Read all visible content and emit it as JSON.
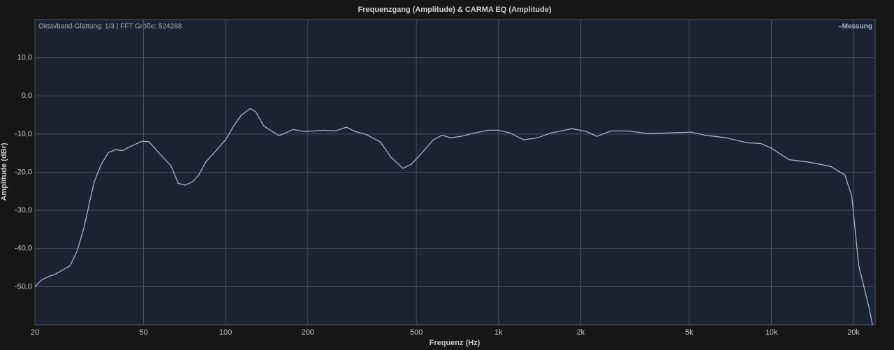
{
  "chart_data": {
    "type": "line",
    "title": "Frequenzgang (Amplitude) & CARMA EQ (Amplitude)",
    "annotation": "Oktavband-Glättung: 1/3 | FFT Größe: 524288",
    "x_label": "Frequenz (Hz)",
    "y_label": "Amplitude (dBr)",
    "log_x": true,
    "grid": true,
    "legend": "top-right",
    "xlim": [
      20,
      24000
    ],
    "ylim": [
      -60,
      20
    ],
    "xticks": [
      20,
      50,
      100,
      200,
      500,
      {
        "value": 1000,
        "label": "1k"
      },
      {
        "value": 2000,
        "label": "2k"
      },
      {
        "value": 5000,
        "label": "5k"
      },
      {
        "value": 10000,
        "label": "10k"
      },
      {
        "value": 20000,
        "label": "20k"
      }
    ],
    "yticks": [
      {
        "value": -50,
        "label": "-50,0"
      },
      {
        "value": -40,
        "label": "-40,0"
      },
      {
        "value": -30,
        "label": "-30,0"
      },
      {
        "value": -20,
        "label": "-20,0"
      },
      {
        "value": -10,
        "label": "-10,0"
      },
      {
        "value": 0,
        "label": "0,0"
      },
      {
        "value": 10,
        "label": "10,0"
      }
    ],
    "x": [
      20,
      21.2,
      22.5,
      23.8,
      25.3,
      26.9,
      28.5,
      30.3,
      31.7,
      33,
      35,
      37.2,
      39.5,
      41.9,
      45.6,
      49.3,
      52.3,
      57.4,
      63,
      67,
      70.9,
      75.7,
      79.8,
      84.4,
      92.3,
      99.9,
      107,
      114,
      123,
      129,
      138,
      148,
      157,
      177,
      193,
      211,
      230,
      252,
      277,
      298,
      327,
      369,
      404,
      446,
      480,
      526,
      577,
      620,
      667,
      728,
      819,
      920,
      1000,
      1099,
      1237,
      1390,
      1561,
      1863,
      2096,
      2291,
      2578,
      2982,
      3561,
      4252,
      5078,
      5714,
      6822,
      8146,
      9165,
      10000,
      11600,
      13836,
      16525,
      18583,
      19705,
      20894,
      22807,
      23473
    ],
    "series": [
      {
        "name": "Messung",
        "color": "#aab2d2",
        "values": [
          -50,
          -48.2,
          -47.3,
          -46.7,
          -45.6,
          -44.5,
          -40.8,
          -34.4,
          -28,
          -22.5,
          -17.9,
          -14.8,
          -14.1,
          -14.3,
          -13,
          -11.9,
          -12,
          -15.2,
          -18.3,
          -22.9,
          -23.4,
          -22.5,
          -20.7,
          -17.4,
          -14.3,
          -11.5,
          -7.9,
          -5.1,
          -3.3,
          -4.2,
          -7.9,
          -9.3,
          -10.4,
          -8.8,
          -9.3,
          -9.2,
          -9,
          -9.2,
          -8.2,
          -9.3,
          -10.1,
          -12.1,
          -16.1,
          -19,
          -17.9,
          -14.8,
          -11.5,
          -10.3,
          -11,
          -10.6,
          -9.7,
          -9,
          -9,
          -9.7,
          -11.5,
          -11,
          -9.7,
          -8.6,
          -9.3,
          -10.6,
          -9.2,
          -9.2,
          -9.9,
          -9.7,
          -9.5,
          -10.3,
          -11,
          -12.3,
          -12.5,
          -13.7,
          -16.7,
          -17.4,
          -18.5,
          -20.7,
          -26.2,
          -44.5,
          -55.5,
          -60
        ]
      }
    ]
  }
}
